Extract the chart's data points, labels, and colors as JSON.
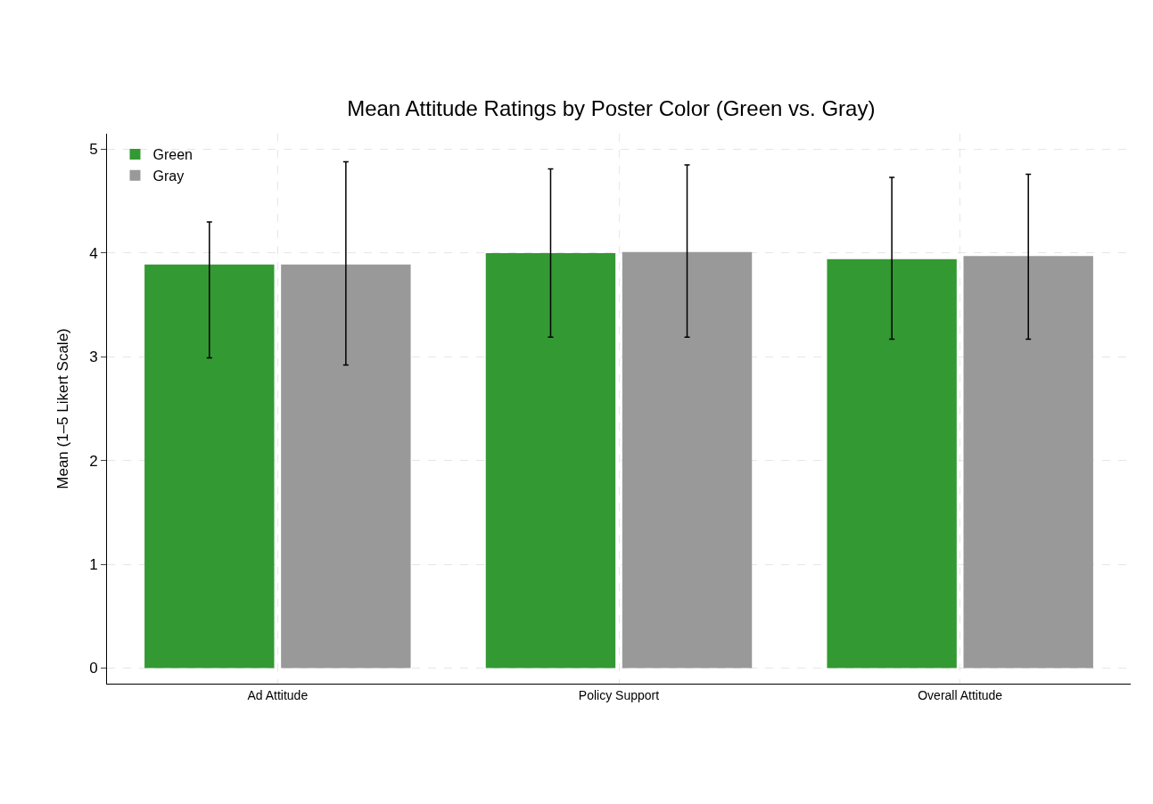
{
  "chart_data": {
    "type": "bar",
    "title": "Mean Attitude Ratings by Poster Color (Green vs. Gray)",
    "ylabel": "Mean (1–5 Likert Scale)",
    "categories": [
      "Ad Attitude",
      "Policy Support",
      "Overall Attitude"
    ],
    "series": [
      {
        "name": "Green",
        "color": "#339933",
        "values": [
          3.89,
          4.0,
          3.94
        ],
        "errors": [
          [
            2.99,
            4.3
          ],
          [
            3.19,
            4.81
          ],
          [
            3.17,
            4.73
          ]
        ]
      },
      {
        "name": "Gray",
        "color": "#999999",
        "values": [
          3.89,
          4.01,
          3.97
        ],
        "errors": [
          [
            2.92,
            4.88
          ],
          [
            3.19,
            4.85
          ],
          [
            3.17,
            4.76
          ]
        ]
      }
    ],
    "ylim": [
      -0.15,
      5.15
    ],
    "yticks": [
      0,
      1,
      2,
      3,
      4,
      5
    ],
    "grid": true,
    "legend": "top left"
  }
}
